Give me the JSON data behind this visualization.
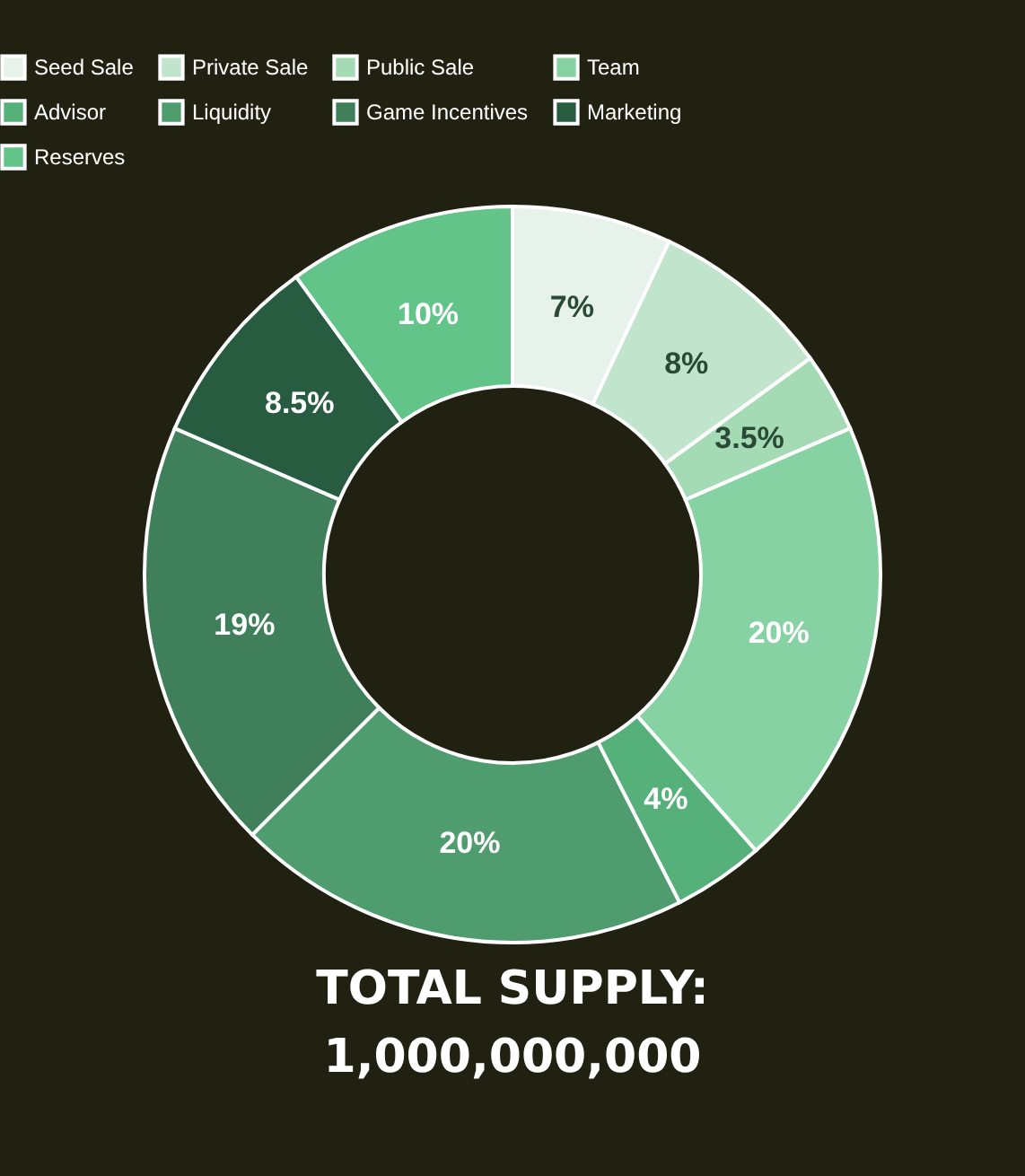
{
  "chart_data": {
    "type": "donut",
    "categories": [
      "Seed Sale",
      "Private Sale",
      "Public Sale",
      "Team",
      "Advisor",
      "Liquidity",
      "Game Incentives",
      "Marketing",
      "Reserves"
    ],
    "values": [
      7,
      8,
      3.5,
      20,
      4,
      20,
      19,
      8.5,
      10
    ],
    "colors": [
      "#e6f2ea",
      "#c1e4cc",
      "#a4dbb5",
      "#86d2a2",
      "#56b07a",
      "#4f9d6f",
      "#3f7f5a",
      "#275c40",
      "#62c488"
    ],
    "value_labels": [
      "7%",
      "8%",
      "3.5%",
      "20%",
      "4%",
      "20%",
      "19%",
      "8.5%",
      "10%"
    ],
    "legend": "top",
    "annotations": [
      "TOTAL SUPPLY:",
      "1,000,000,000"
    ]
  }
}
